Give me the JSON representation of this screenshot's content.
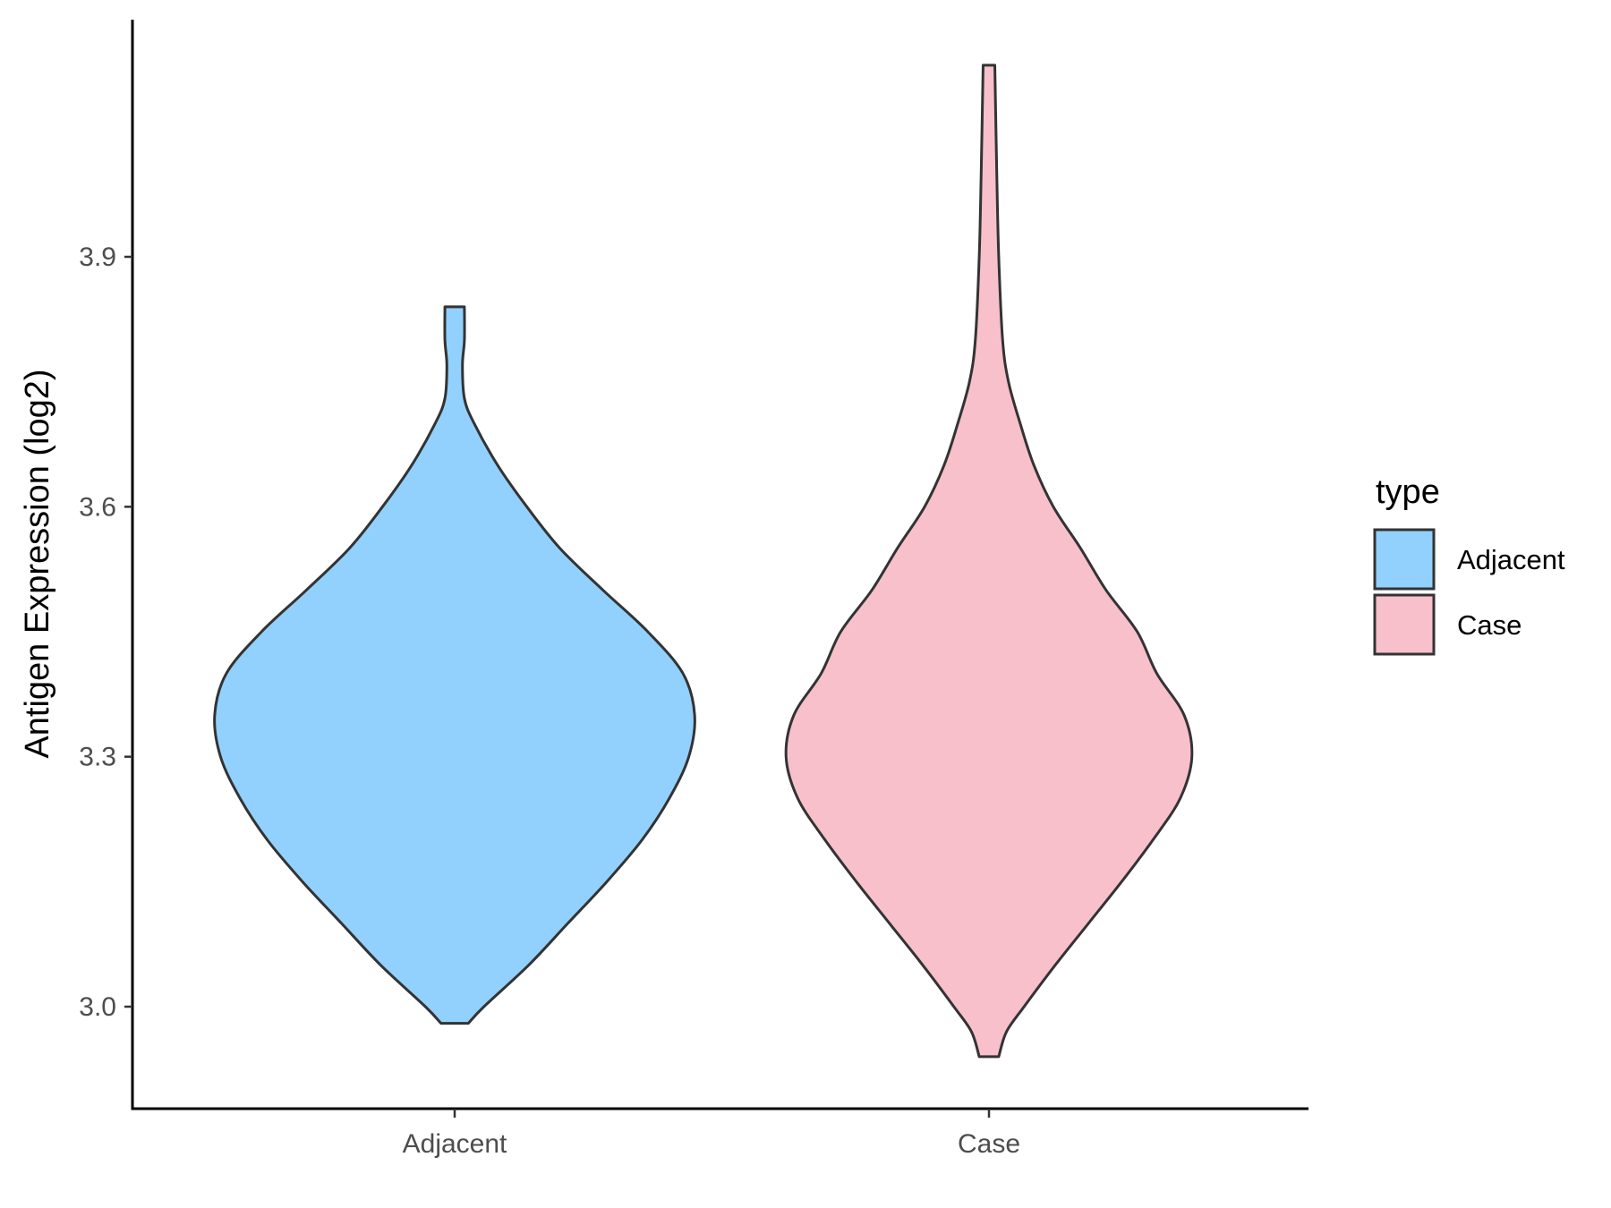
{
  "chart_data": {
    "type": "violin",
    "title": "",
    "xlabel": "",
    "ylabel": "Antigen Expression (log2)",
    "ylim": [
      2.88,
      4.18
    ],
    "yticks": [
      "3.0",
      "3.3",
      "3.6",
      "3.9"
    ],
    "ytick_values": [
      3.0,
      3.3,
      3.6,
      3.9
    ],
    "categories": [
      "Adjacent",
      "Case"
    ],
    "grid": false,
    "legend": {
      "title": "type",
      "placement": "right",
      "entries": [
        {
          "label": "Adjacent",
          "color": "#92d1fd"
        },
        {
          "label": "Case",
          "color": "#f7c0cb"
        }
      ]
    },
    "series": [
      {
        "name": "Adjacent",
        "color": "#92d1fd",
        "min": 2.98,
        "max": 3.84,
        "density": [
          [
            2.98,
            0.07
          ],
          [
            3.0,
            0.15
          ],
          [
            3.05,
            0.38
          ],
          [
            3.1,
            0.58
          ],
          [
            3.15,
            0.78
          ],
          [
            3.2,
            0.96
          ],
          [
            3.25,
            1.1
          ],
          [
            3.3,
            1.2
          ],
          [
            3.35,
            1.23
          ],
          [
            3.4,
            1.17
          ],
          [
            3.45,
            0.99
          ],
          [
            3.5,
            0.76
          ],
          [
            3.55,
            0.54
          ],
          [
            3.6,
            0.37
          ],
          [
            3.65,
            0.22
          ],
          [
            3.7,
            0.1
          ],
          [
            3.73,
            0.05
          ],
          [
            3.77,
            0.04
          ],
          [
            3.8,
            0.05
          ],
          [
            3.84,
            0.05
          ]
        ]
      },
      {
        "name": "Case",
        "color": "#f7c0cb",
        "min": 2.94,
        "max": 4.13,
        "density": [
          [
            2.94,
            0.05
          ],
          [
            2.97,
            0.09
          ],
          [
            3.0,
            0.18
          ],
          [
            3.05,
            0.34
          ],
          [
            3.1,
            0.51
          ],
          [
            3.15,
            0.68
          ],
          [
            3.2,
            0.84
          ],
          [
            3.25,
            0.98
          ],
          [
            3.3,
            1.04
          ],
          [
            3.35,
            1.0
          ],
          [
            3.4,
            0.86
          ],
          [
            3.45,
            0.76
          ],
          [
            3.5,
            0.6
          ],
          [
            3.55,
            0.47
          ],
          [
            3.6,
            0.33
          ],
          [
            3.65,
            0.23
          ],
          [
            3.7,
            0.16
          ],
          [
            3.75,
            0.1
          ],
          [
            3.8,
            0.07
          ],
          [
            3.9,
            0.05
          ],
          [
            4.0,
            0.04
          ],
          [
            4.13,
            0.03
          ]
        ]
      }
    ]
  }
}
